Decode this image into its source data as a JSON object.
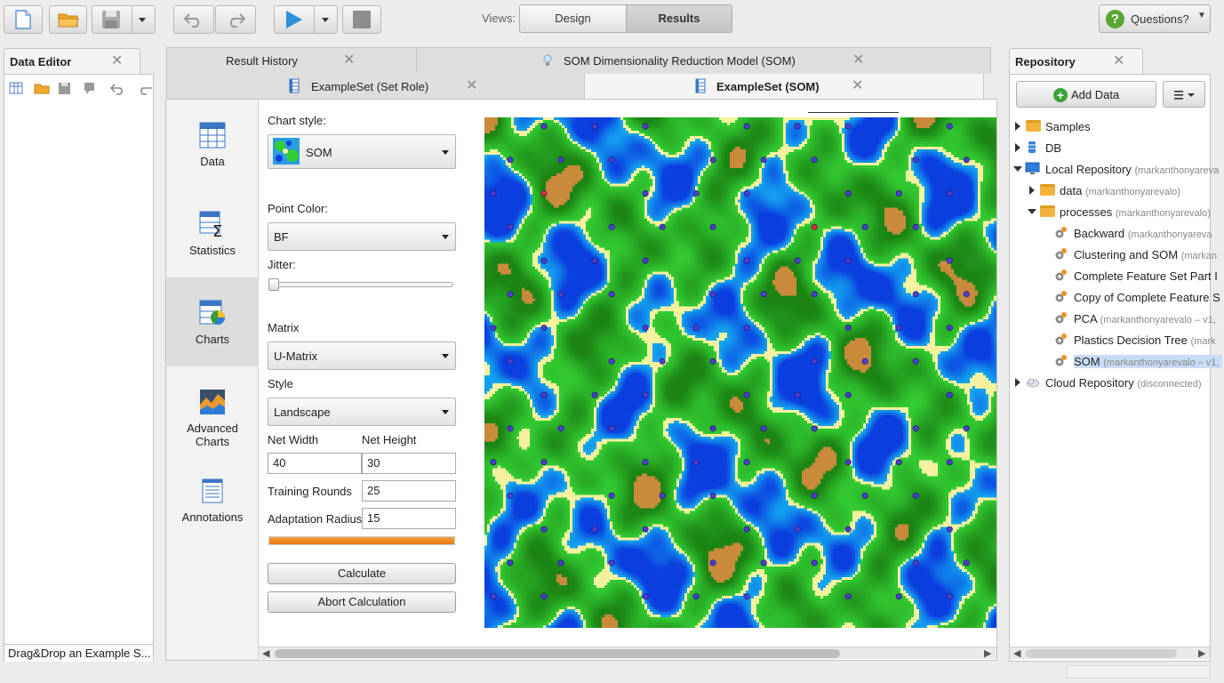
{
  "toolbar": {
    "views_label": "Views:",
    "design_label": "Design",
    "results_label": "Results",
    "questions_label": "Questions?"
  },
  "data_editor": {
    "title": "Data Editor",
    "status": "Drag&Drop an Example S..."
  },
  "editor_tabs": {
    "row1": [
      "Result History",
      "SOM Dimensionality Reduction Model (SOM)"
    ],
    "row2": [
      "ExampleSet (Set Role)",
      "ExampleSet (SOM)"
    ],
    "active": "ExampleSet (SOM)"
  },
  "side_tabs": [
    {
      "label": "Data",
      "icon": "table-icon"
    },
    {
      "label": "Statistics",
      "icon": "statistics-icon"
    },
    {
      "label": "Charts",
      "icon": "charts-icon",
      "active": true
    },
    {
      "label": "Advanced Charts",
      "icon": "advanced-charts-icon"
    },
    {
      "label": "Annotations",
      "icon": "annotations-icon"
    }
  ],
  "chart_form": {
    "chart_style_label": "Chart style:",
    "chart_style_value": "SOM",
    "point_color_label": "Point Color:",
    "point_color_value": "BF",
    "jitter_label": "Jitter:",
    "jitter_value": 0,
    "matrix_label": "Matrix",
    "matrix_value": "U-Matrix",
    "style_label": "Style",
    "style_value": "Landscape",
    "net_width_label": "Net Width",
    "net_width_value": "40",
    "net_height_label": "Net Height",
    "net_height_value": "30",
    "training_rounds_label": "Training Rounds",
    "training_rounds_value": "25",
    "adaptation_radius_label": "Adaptation Radius",
    "adaptation_radius_value": "15",
    "progress": 1.0,
    "calculate_label": "Calculate",
    "abort_label": "Abort Calculation"
  },
  "colors": {
    "accent_progress": "#f08a1c",
    "som_water_deep": "#0b3fe0",
    "som_water": "#14a8f0",
    "som_sand": "#f6f2a0",
    "som_grass": "#33cc33",
    "som_mountain": "#c98a3c",
    "point_default": "#4a3fd0",
    "point_highlight": "#e03030"
  },
  "repository": {
    "title": "Repository",
    "add_data_label": "Add Data",
    "items": [
      {
        "label": "Samples",
        "sub": "",
        "level": 0,
        "expand": "right",
        "icon": "folder-icon"
      },
      {
        "label": "DB",
        "sub": "",
        "level": 0,
        "expand": "right",
        "icon": "database-icon"
      },
      {
        "label": "Local Repository",
        "sub": "(markanthonyareva",
        "level": 0,
        "expand": "down",
        "icon": "computer-icon"
      },
      {
        "label": "data",
        "sub": "(markanthonyarevalo)",
        "level": 1,
        "expand": "right",
        "icon": "folder-icon"
      },
      {
        "label": "processes",
        "sub": "(markanthonyarevalo)",
        "level": 1,
        "expand": "down",
        "icon": "folder-icon"
      },
      {
        "label": "Backward",
        "sub": "(markanthonyareva",
        "level": 2,
        "expand": "",
        "icon": "process-icon"
      },
      {
        "label": "Clustering and SOM",
        "sub": "(markan",
        "level": 2,
        "expand": "",
        "icon": "process-icon"
      },
      {
        "label": "Complete Feature Set Part I",
        "sub": "",
        "level": 2,
        "expand": "",
        "icon": "process-icon"
      },
      {
        "label": "Copy of Complete Feature S",
        "sub": "",
        "level": 2,
        "expand": "",
        "icon": "process-icon"
      },
      {
        "label": "PCA",
        "sub": "(markanthonyarevalo – v1,",
        "level": 2,
        "expand": "",
        "icon": "process-icon"
      },
      {
        "label": "Plastics Decision Tree",
        "sub": "(mark",
        "level": 2,
        "expand": "",
        "icon": "process-icon"
      },
      {
        "label": "SOM",
        "sub": "(markanthonyarevalo – v1,",
        "level": 2,
        "expand": "",
        "icon": "process-icon",
        "selected": true
      },
      {
        "label": "Cloud Repository",
        "sub": "(disconnected)",
        "level": 0,
        "expand": "right",
        "icon": "cloud-icon"
      }
    ]
  }
}
